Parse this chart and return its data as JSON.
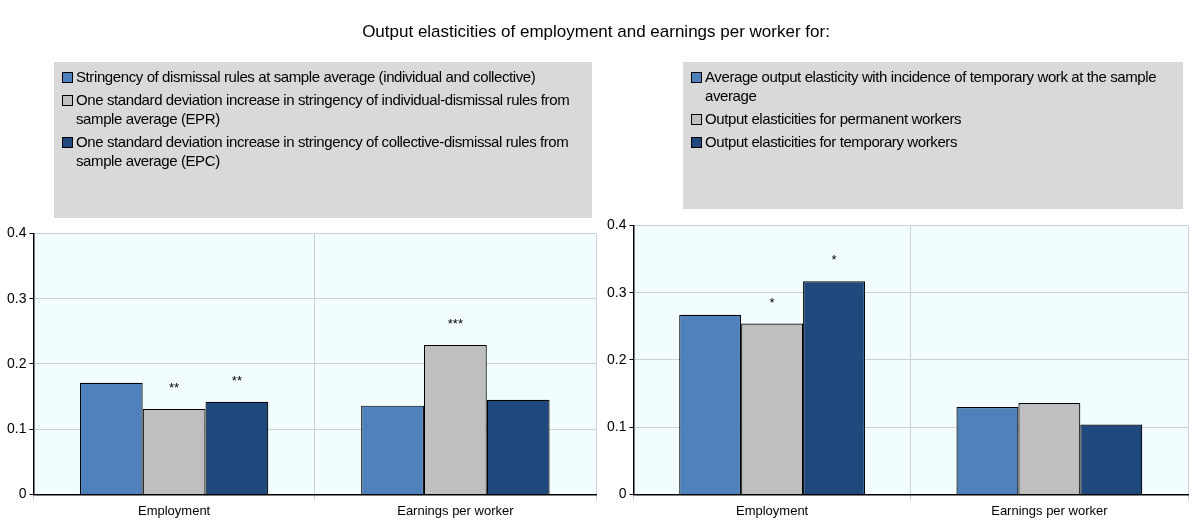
{
  "chart_data": [
    {
      "type": "bar",
      "title": "Output elasticities of employment and earnings per worker for:",
      "categories": [
        "Employment",
        "Earnings per worker"
      ],
      "series": [
        {
          "name": "Stringency of dismissal rules at sample average (individual and collective)",
          "color": "#4f81bd",
          "values": [
            0.171,
            0.136
          ]
        },
        {
          "name": "One standard deviation increase in stringency of individual-dismissal rules from sample average (EPR)",
          "color": "#bfbfbf",
          "values": [
            0.131,
            0.229
          ],
          "value_labels": [
            "**",
            "***"
          ]
        },
        {
          "name": "One standard deviation increase in stringency of collective-dismissal rules from sample average (EPC)",
          "color": "#1f497d",
          "values": [
            0.142,
            0.145
          ],
          "value_labels": [
            "**",
            null
          ]
        }
      ],
      "ylim": [
        0,
        0.4
      ],
      "yticks": [
        0,
        0.1,
        0.2,
        0.3,
        0.4
      ],
      "grid": true,
      "legend": "top"
    },
    {
      "type": "bar",
      "categories": [
        "Employment",
        "Earnings per worker"
      ],
      "series": [
        {
          "name": "Average output elasticity with incidence of temporary work at the sample average",
          "color": "#4f81bd",
          "values": [
            0.267,
            0.13
          ]
        },
        {
          "name": "Output elasticities for permanent workers",
          "color": "#bfbfbf",
          "values": [
            0.254,
            0.136
          ],
          "value_labels": [
            "*",
            null
          ]
        },
        {
          "name": "Output elasticities for temporary workers",
          "color": "#1f497d",
          "values": [
            0.317,
            0.104
          ],
          "value_labels": [
            "*",
            null
          ]
        }
      ],
      "ylim": [
        0,
        0.4
      ],
      "yticks": [
        0,
        0.1,
        0.2,
        0.3,
        0.4
      ],
      "grid": true,
      "legend": "top"
    }
  ]
}
